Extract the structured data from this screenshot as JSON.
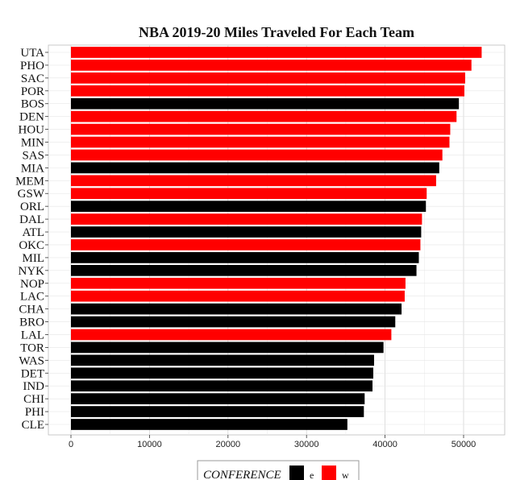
{
  "chart_data": {
    "type": "bar",
    "orientation": "horizontal",
    "title": "NBA 2019-20 Miles Traveled For Each Team",
    "xlabel": "",
    "ylabel": "",
    "xlim": [
      0,
      55000
    ],
    "x_ticks": [
      0,
      10000,
      20000,
      30000,
      40000,
      50000
    ],
    "grid": true,
    "legend": {
      "title": "CONFERENCE",
      "position": "bottom",
      "entries": [
        {
          "label": "e",
          "color": "#000000"
        },
        {
          "label": "w",
          "color": "#ff0000"
        }
      ]
    },
    "bars": [
      {
        "team": "UTA",
        "value": 52300,
        "conference": "w"
      },
      {
        "team": "PHO",
        "value": 51000,
        "conference": "w"
      },
      {
        "team": "SAC",
        "value": 50200,
        "conference": "w"
      },
      {
        "team": "POR",
        "value": 50100,
        "conference": "w"
      },
      {
        "team": "BOS",
        "value": 49400,
        "conference": "e"
      },
      {
        "team": "DEN",
        "value": 49100,
        "conference": "w"
      },
      {
        "team": "HOU",
        "value": 48300,
        "conference": "w"
      },
      {
        "team": "MIN",
        "value": 48200,
        "conference": "w"
      },
      {
        "team": "SAS",
        "value": 47300,
        "conference": "w"
      },
      {
        "team": "MIA",
        "value": 46900,
        "conference": "e"
      },
      {
        "team": "MEM",
        "value": 46500,
        "conference": "w"
      },
      {
        "team": "GSW",
        "value": 45300,
        "conference": "w"
      },
      {
        "team": "ORL",
        "value": 45200,
        "conference": "e"
      },
      {
        "team": "DAL",
        "value": 44700,
        "conference": "w"
      },
      {
        "team": "ATL",
        "value": 44600,
        "conference": "e"
      },
      {
        "team": "OKC",
        "value": 44500,
        "conference": "w"
      },
      {
        "team": "MIL",
        "value": 44300,
        "conference": "e"
      },
      {
        "team": "NYK",
        "value": 44000,
        "conference": "e"
      },
      {
        "team": "NOP",
        "value": 42600,
        "conference": "w"
      },
      {
        "team": "LAC",
        "value": 42500,
        "conference": "w"
      },
      {
        "team": "CHA",
        "value": 42100,
        "conference": "e"
      },
      {
        "team": "BRO",
        "value": 41300,
        "conference": "e"
      },
      {
        "team": "LAL",
        "value": 40800,
        "conference": "w"
      },
      {
        "team": "TOR",
        "value": 39800,
        "conference": "e"
      },
      {
        "team": "WAS",
        "value": 38600,
        "conference": "e"
      },
      {
        "team": "DET",
        "value": 38500,
        "conference": "e"
      },
      {
        "team": "IND",
        "value": 38400,
        "conference": "e"
      },
      {
        "team": "CHI",
        "value": 37400,
        "conference": "e"
      },
      {
        "team": "PHI",
        "value": 37300,
        "conference": "e"
      },
      {
        "team": "CLE",
        "value": 35200,
        "conference": "e"
      }
    ]
  }
}
